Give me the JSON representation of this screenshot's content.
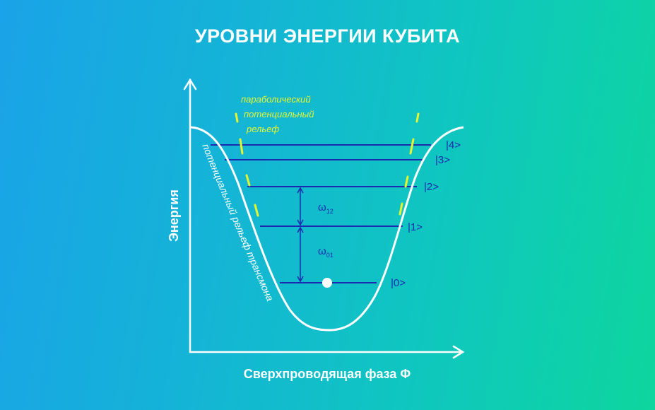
{
  "title": "УРОВНИ ЭНЕРГИИ КУБИТА",
  "axes": {
    "y_label": "Энергия",
    "x_label": "Сверхпроводящая фаза Φ"
  },
  "parabolic_annotation": {
    "line1": "параболический",
    "line2": "потенциальный",
    "line3": "рельеф"
  },
  "curve_label": "потенциальный рельеф трансмона",
  "levels": [
    {
      "label": "|0>"
    },
    {
      "label": "|1>"
    },
    {
      "label": "|2>"
    },
    {
      "label": "|3>"
    },
    {
      "label": "|4>"
    }
  ],
  "transitions": {
    "omega12": {
      "symbol": "ω",
      "sub": "12"
    },
    "omega01": {
      "symbol": "ω",
      "sub": "01"
    }
  },
  "colors": {
    "level_line": "#1c2ab0",
    "curve": "#ffffff",
    "parabola_dash": "#e8f52c",
    "axis": "#ffffff"
  }
}
